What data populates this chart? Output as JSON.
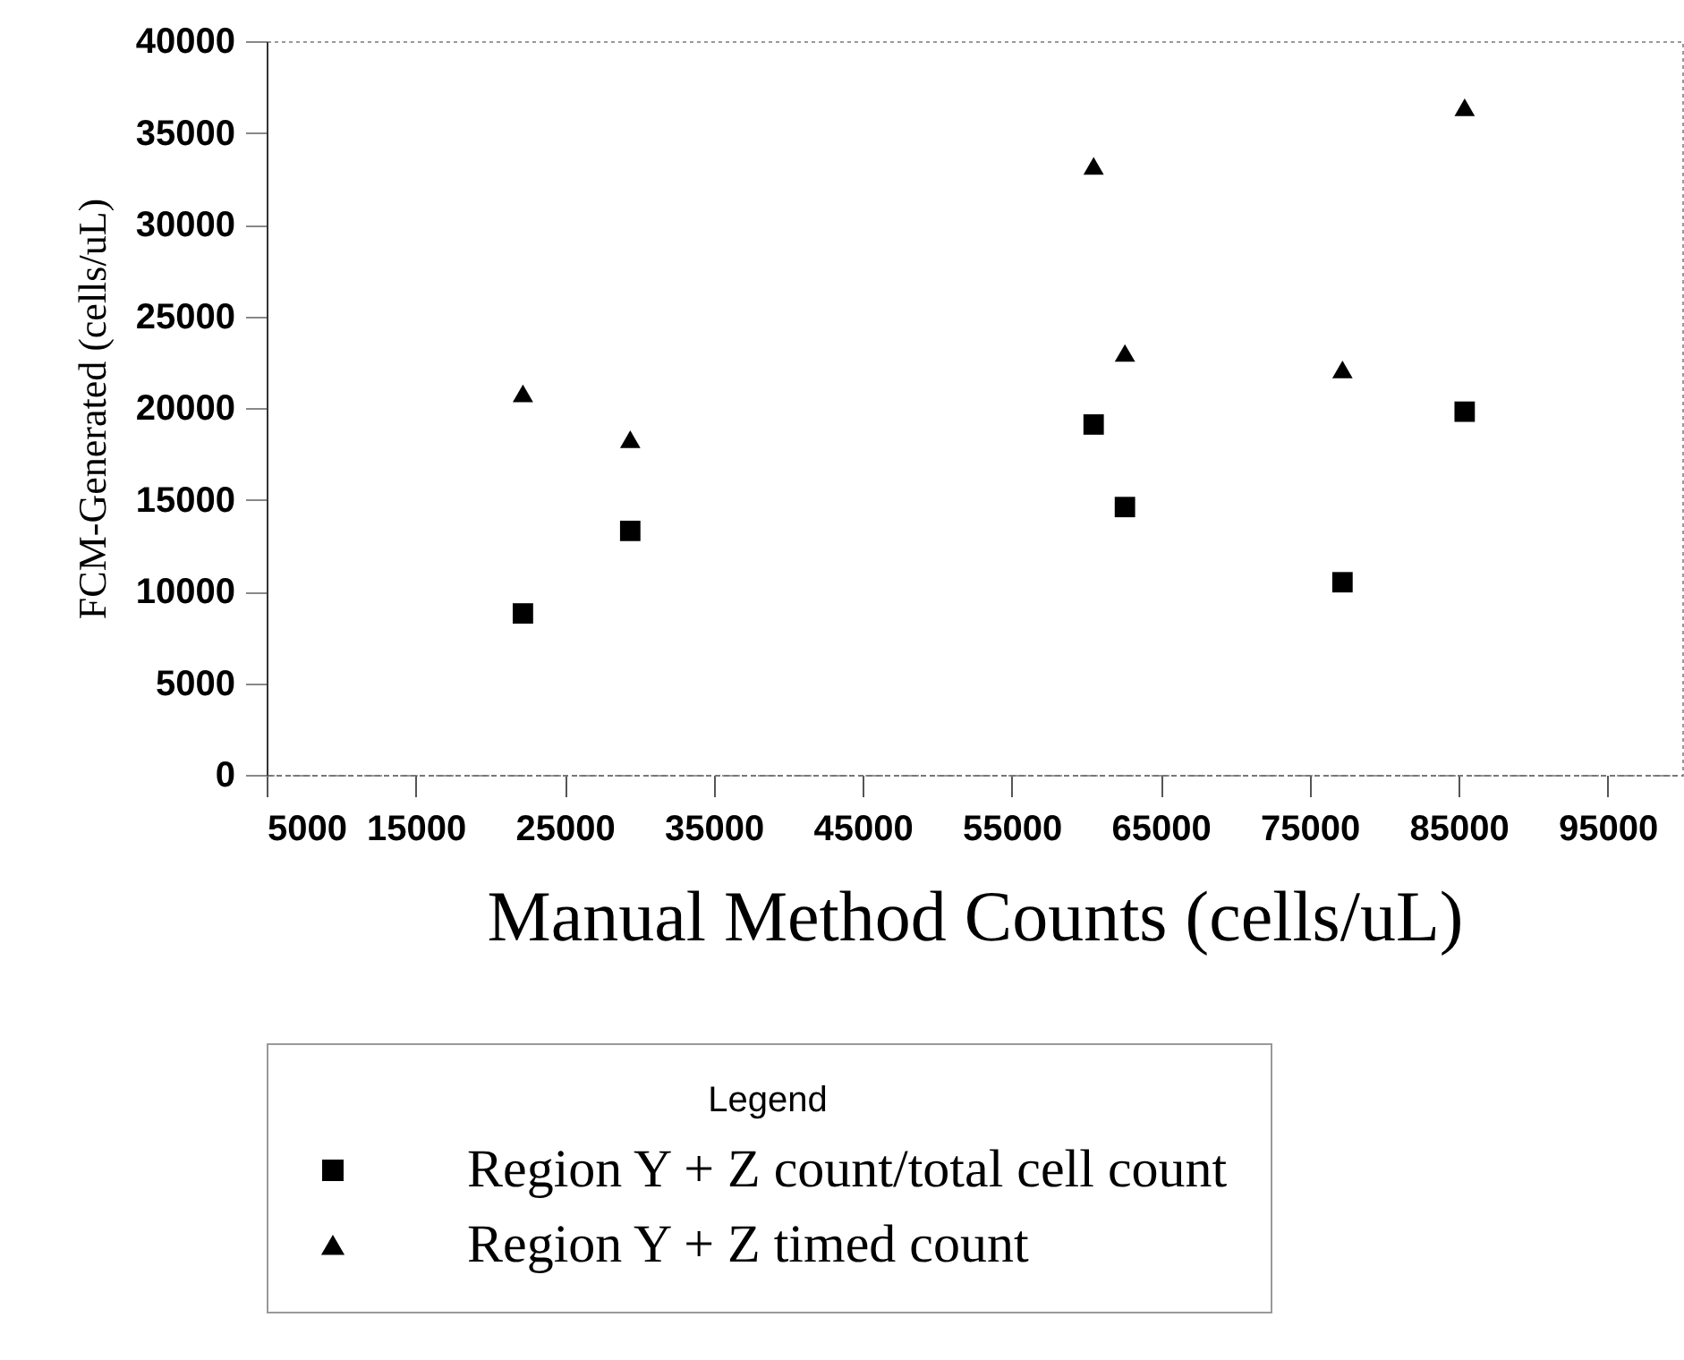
{
  "chart_data": {
    "type": "scatter",
    "xlabel": "Manual Method Counts (cells/uL)",
    "ylabel": "FCM-Generated (cells/uL)",
    "legend_title": "Legend",
    "x": [
      22200,
      29400,
      60500,
      62600,
      77200,
      85400
    ],
    "series": [
      {
        "name": "Region Y + Z count/total cell count",
        "color": "#000000",
        "marker": "square",
        "values": [
          8800,
          13300,
          19100,
          14600,
          10500,
          19800
        ]
      },
      {
        "name": "Region Y + Z timed count",
        "color": "#000000",
        "marker": "triangle",
        "values": [
          20800,
          18300,
          33200,
          23000,
          22100,
          36400
        ]
      }
    ],
    "xlim": [
      5000,
      100000
    ],
    "xticks": [
      5000,
      15000,
      25000,
      35000,
      45000,
      55000,
      65000,
      75000,
      85000,
      95000
    ],
    "ylim": [
      0,
      40000
    ],
    "yticks": [
      0,
      5000,
      10000,
      15000,
      20000,
      25000,
      30000,
      35000,
      40000
    ],
    "grid": false,
    "legend": "bottom"
  }
}
